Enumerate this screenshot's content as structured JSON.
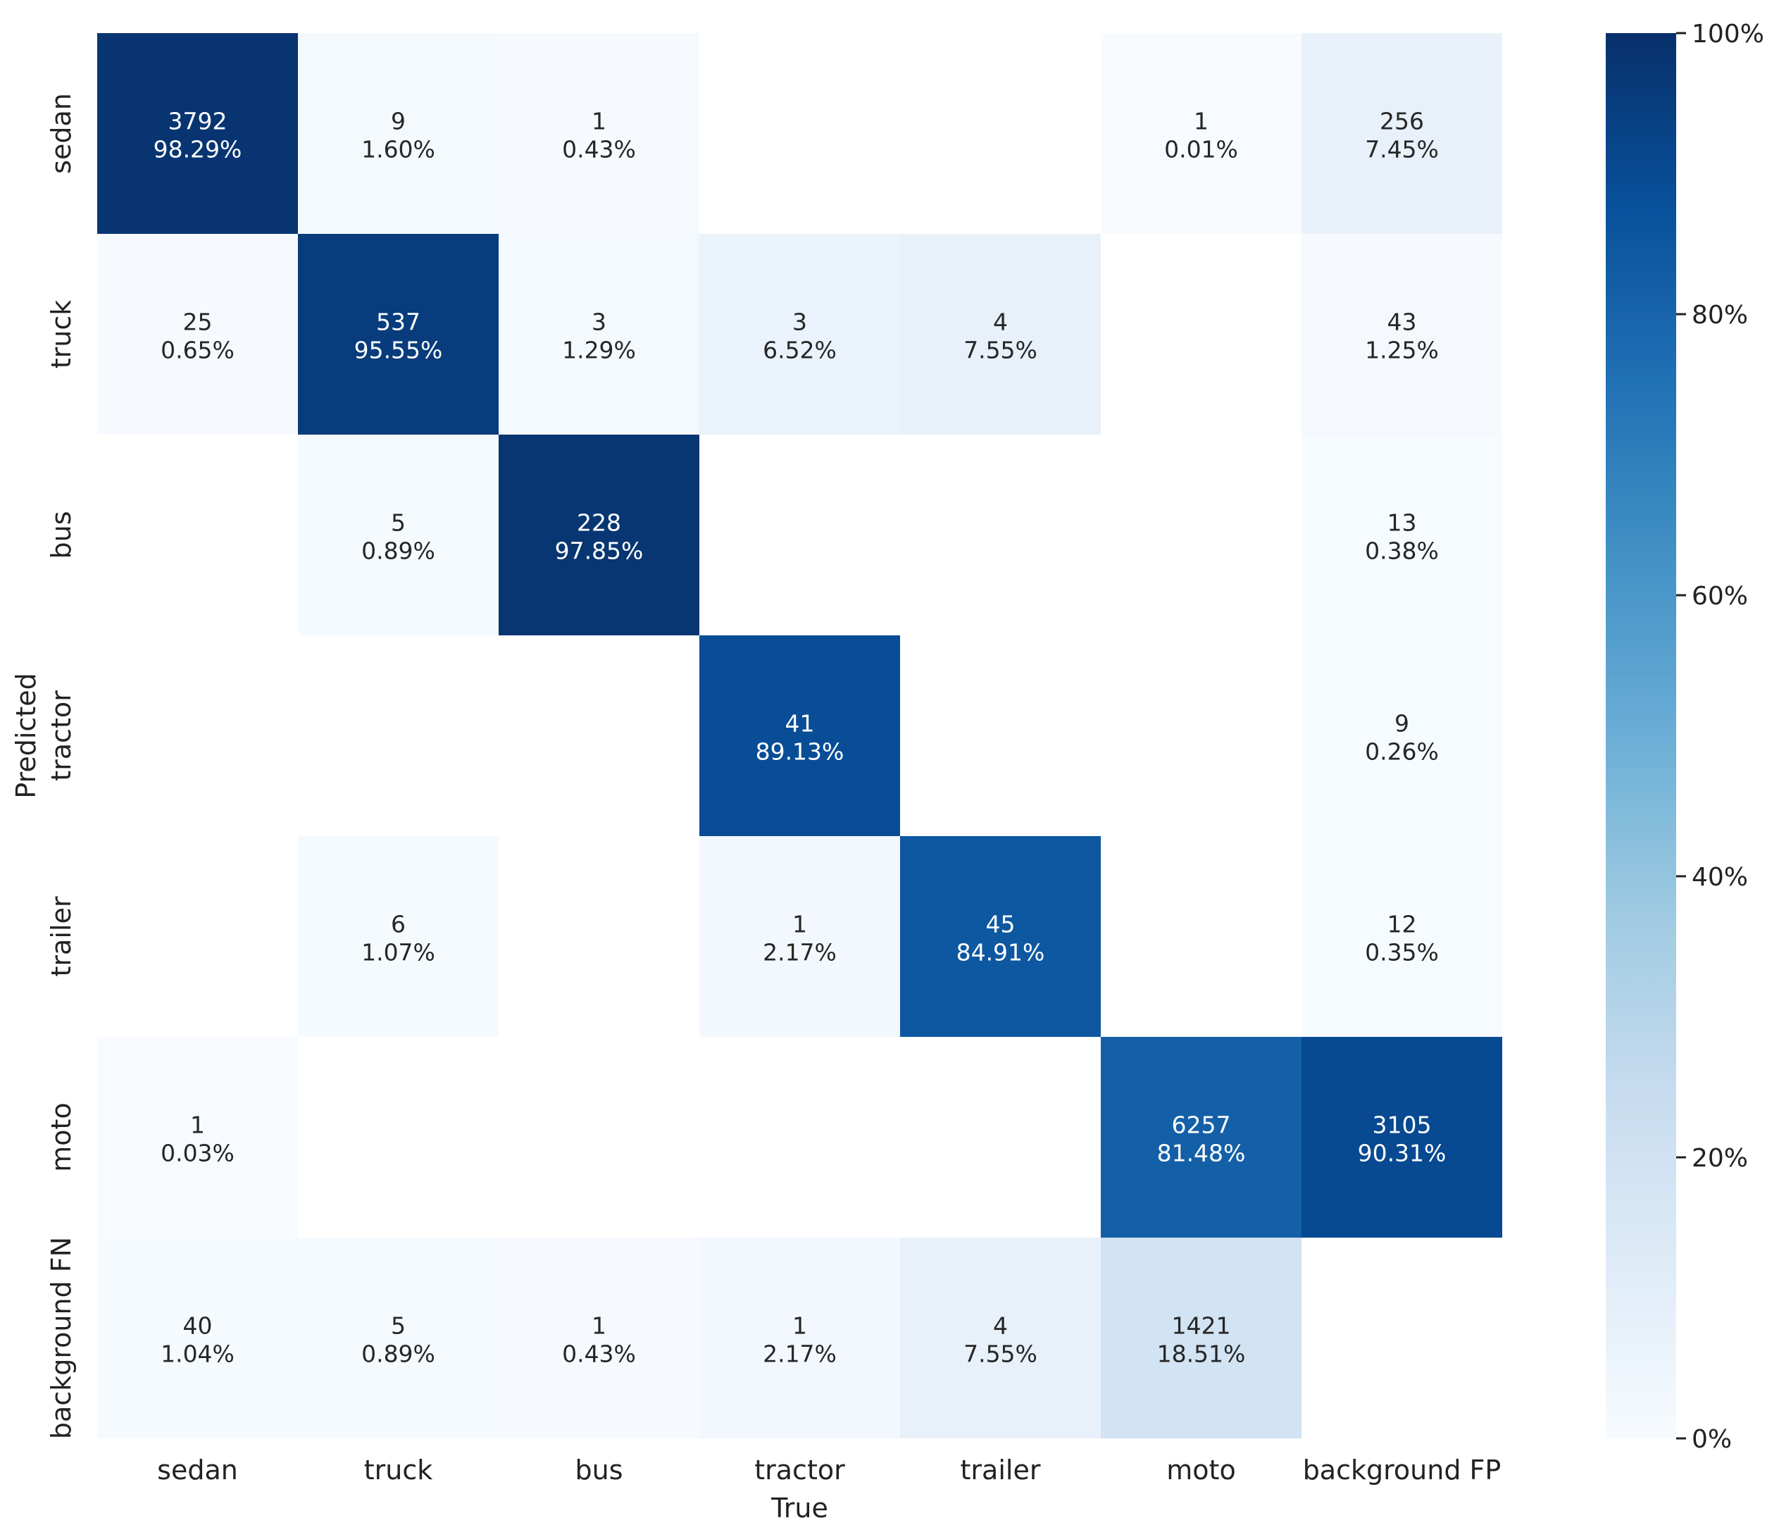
{
  "chart_data": {
    "type": "heatmap",
    "title": "",
    "xlabel": "True",
    "ylabel": "Predicted",
    "x_categories": [
      "sedan",
      "truck",
      "bus",
      "tractor",
      "trailer",
      "moto",
      "background FP"
    ],
    "y_categories": [
      "sedan",
      "truck",
      "bus",
      "tractor",
      "trailer",
      "moto",
      "background FN"
    ],
    "cells": [
      {
        "row": 0,
        "col": 0,
        "count": "3792",
        "percent": "98.29%",
        "value": 98.29
      },
      {
        "row": 0,
        "col": 1,
        "count": "9",
        "percent": "1.60%",
        "value": 1.6
      },
      {
        "row": 0,
        "col": 2,
        "count": "1",
        "percent": "0.43%",
        "value": 0.43
      },
      {
        "row": 0,
        "col": 5,
        "count": "1",
        "percent": "0.01%",
        "value": 0.01
      },
      {
        "row": 0,
        "col": 6,
        "count": "256",
        "percent": "7.45%",
        "value": 7.45
      },
      {
        "row": 1,
        "col": 0,
        "count": "25",
        "percent": "0.65%",
        "value": 0.65
      },
      {
        "row": 1,
        "col": 1,
        "count": "537",
        "percent": "95.55%",
        "value": 95.55
      },
      {
        "row": 1,
        "col": 2,
        "count": "3",
        "percent": "1.29%",
        "value": 1.29
      },
      {
        "row": 1,
        "col": 3,
        "count": "3",
        "percent": "6.52%",
        "value": 6.52
      },
      {
        "row": 1,
        "col": 4,
        "count": "4",
        "percent": "7.55%",
        "value": 7.55
      },
      {
        "row": 1,
        "col": 6,
        "count": "43",
        "percent": "1.25%",
        "value": 1.25
      },
      {
        "row": 2,
        "col": 1,
        "count": "5",
        "percent": "0.89%",
        "value": 0.89
      },
      {
        "row": 2,
        "col": 2,
        "count": "228",
        "percent": "97.85%",
        "value": 97.85
      },
      {
        "row": 2,
        "col": 6,
        "count": "13",
        "percent": "0.38%",
        "value": 0.38
      },
      {
        "row": 3,
        "col": 3,
        "count": "41",
        "percent": "89.13%",
        "value": 89.13
      },
      {
        "row": 3,
        "col": 6,
        "count": "9",
        "percent": "0.26%",
        "value": 0.26
      },
      {
        "row": 4,
        "col": 1,
        "count": "6",
        "percent": "1.07%",
        "value": 1.07
      },
      {
        "row": 4,
        "col": 3,
        "count": "1",
        "percent": "2.17%",
        "value": 2.17
      },
      {
        "row": 4,
        "col": 4,
        "count": "45",
        "percent": "84.91%",
        "value": 84.91
      },
      {
        "row": 4,
        "col": 6,
        "count": "12",
        "percent": "0.35%",
        "value": 0.35
      },
      {
        "row": 5,
        "col": 0,
        "count": "1",
        "percent": "0.03%",
        "value": 0.03
      },
      {
        "row": 5,
        "col": 5,
        "count": "6257",
        "percent": "81.48%",
        "value": 81.48
      },
      {
        "row": 5,
        "col": 6,
        "count": "3105",
        "percent": "90.31%",
        "value": 90.31
      },
      {
        "row": 6,
        "col": 0,
        "count": "40",
        "percent": "1.04%",
        "value": 1.04
      },
      {
        "row": 6,
        "col": 1,
        "count": "5",
        "percent": "0.89%",
        "value": 0.89
      },
      {
        "row": 6,
        "col": 2,
        "count": "1",
        "percent": "0.43%",
        "value": 0.43
      },
      {
        "row": 6,
        "col": 3,
        "count": "1",
        "percent": "2.17%",
        "value": 2.17
      },
      {
        "row": 6,
        "col": 4,
        "count": "4",
        "percent": "7.55%",
        "value": 7.55
      },
      {
        "row": 6,
        "col": 5,
        "count": "1421",
        "percent": "18.51%",
        "value": 18.51
      }
    ],
    "colorbar": {
      "range": [
        0,
        100
      ],
      "ticks": [
        {
          "value": 0,
          "label": "0%"
        },
        {
          "value": 20,
          "label": "20%"
        },
        {
          "value": 40,
          "label": "40%"
        },
        {
          "value": 60,
          "label": "60%"
        },
        {
          "value": 80,
          "label": "80%"
        },
        {
          "value": 100,
          "label": "100%"
        }
      ],
      "colormap": [
        "#f7fbff",
        "#deebf7",
        "#c6dbef",
        "#9ecae1",
        "#6baed6",
        "#4292c6",
        "#2171b5",
        "#08519c",
        "#08306b"
      ]
    }
  }
}
